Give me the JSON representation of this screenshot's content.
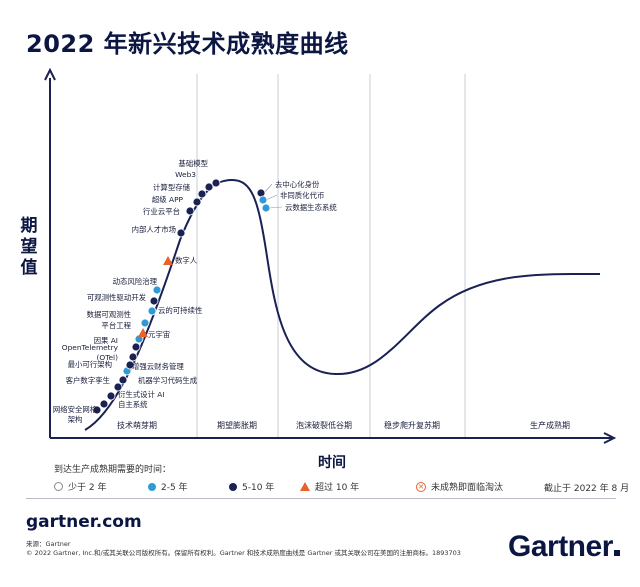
{
  "title": "2022 年新兴技术成熟度曲线",
  "y_axis_label": "期望值",
  "x_axis_label": "时间",
  "legend": {
    "title": "到达生产成熟期需要的时间：",
    "items": [
      {
        "label": "少于 2 年",
        "marker": "white-circle",
        "color": "#ffffff"
      },
      {
        "label": "2-5 年",
        "marker": "light-blue-circle",
        "color": "#2f9bd6"
      },
      {
        "label": "5-10 年",
        "marker": "dark-blue-circle",
        "color": "#1a2153"
      },
      {
        "label": "超过 10 年",
        "marker": "orange-triangle",
        "color": "#e8622a"
      },
      {
        "label": "未成熟即面临淘汰",
        "marker": "crossed-circle",
        "color": "#e8622a"
      }
    ],
    "as_of": "截止于 2022 年 8 月"
  },
  "footer": {
    "website": "gartner.com",
    "source": "来源：Gartner",
    "copyright": "© 2022 Gartner, Inc.和/或其关联公司版权所有。保留所有权利。Gartner 和技术成熟度曲线是 Gartner 或其关联公司在美国的注册商标。1893703",
    "brand": "Gartner"
  },
  "chart_data": {
    "type": "scatter",
    "curve": "hype-cycle",
    "phases": [
      "技术萌芽期",
      "期望膨胀期",
      "泡沫破裂低谷期",
      "稳步爬升复苏期",
      "生产成熟期"
    ],
    "colors": {
      "curve": "#1a2153",
      "blue": "#2f9bd6",
      "navy": "#1a2153",
      "orange": "#e8622a",
      "axis": "#1a2153"
    },
    "points": [
      {
        "label": "网络安全网格架构",
        "category": "5-10 年"
      },
      {
        "label": "自主系统",
        "category": "5-10 年"
      },
      {
        "label": "衍生式设计 AI",
        "category": "5-10 年"
      },
      {
        "label": "机器学习代码生成",
        "category": "5-10 年"
      },
      {
        "label": "客户数字孪生",
        "category": "5-10 年"
      },
      {
        "label": "增强云财务管理",
        "category": "2-5 年"
      },
      {
        "label": "最小可行架构",
        "category": "5-10 年"
      },
      {
        "label": "OpenTelemetry (OTel)",
        "category": "5-10 年"
      },
      {
        "label": "因果 AI",
        "category": "5-10 年"
      },
      {
        "label": "平台工程",
        "category": "2-5 年"
      },
      {
        "label": "元宇宙",
        "category": "超过 10 年"
      },
      {
        "label": "数据可观测性",
        "category": "2-5 年"
      },
      {
        "label": "云的可持续性",
        "category": "2-5 年"
      },
      {
        "label": "可观测性驱动开发",
        "category": "5-10 年"
      },
      {
        "label": "动态风险治理",
        "category": "2-5 年"
      },
      {
        "label": "数字人",
        "category": "超过 10 年"
      },
      {
        "label": "内部人才市场",
        "category": "5-10 年"
      },
      {
        "label": "行业云平台",
        "category": "5-10 年"
      },
      {
        "label": "超级 APP",
        "category": "5-10 年"
      },
      {
        "label": "计算型存储",
        "category": "5-10 年"
      },
      {
        "label": "Web3",
        "category": "5-10 年"
      },
      {
        "label": "基础模型",
        "category": "5-10 年"
      },
      {
        "label": "去中心化身份",
        "category": "5-10 年"
      },
      {
        "label": "非同质化代币",
        "category": "2-5 年"
      },
      {
        "label": "云数据生态系统",
        "category": "2-5 年"
      }
    ]
  }
}
